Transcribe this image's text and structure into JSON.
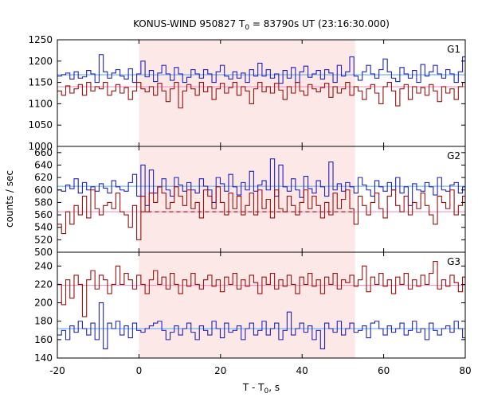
{
  "chart_data": {
    "type": "line",
    "title_main": "KONUS-WIND 950827 T",
    "title_sub": "0",
    "title_rest": " = 83790s UT (23:16:30.000)",
    "xlabel_main": "T - T",
    "xlabel_sub": "0",
    "xlabel_rest": ", s",
    "ylabel": "counts / sec",
    "xlim": [
      -20,
      80
    ],
    "x_ticks": [
      "-20",
      "0",
      "20",
      "40",
      "60",
      "80"
    ],
    "highlight_interval": [
      0,
      53
    ],
    "colors": {
      "blue": "#2222bb",
      "red": "#991111",
      "blue_bg": "#55aaee",
      "red_bg": "#ee88bb",
      "shade": "#fde8e8"
    },
    "x_start": -20,
    "bin_width": 1.024,
    "panels": [
      {
        "label": "G1",
        "ylim": [
          1000,
          1250
        ],
        "y_ticks": [
          "1000",
          "1050",
          "1100",
          "1150",
          "1200",
          "1250"
        ],
        "series": [
          {
            "color_key": "blue",
            "background_level": 1168,
            "values": [
              1165,
              1168,
              1172,
              1158,
              1175,
              1160,
              1163,
              1178,
              1170,
              1150,
              1215,
              1175,
              1160,
              1172,
              1180,
              1165,
              1158,
              1182,
              1150,
              1170,
              1200,
              1163,
              1178,
              1152,
              1172,
              1190,
              1170,
              1155,
              1185,
              1170,
              1150,
              1162,
              1180,
              1170,
              1160,
              1180,
              1170,
              1150,
              1175,
              1190,
              1165,
              1158,
              1175,
              1160,
              1172,
              1150,
              1180,
              1165,
              1195,
              1165,
              1180,
              1160,
              1170,
              1148,
              1178,
              1160,
              1185,
              1150,
              1175,
              1188,
              1162,
              1170,
              1178,
              1158,
              1180,
              1172,
              1150,
              1190,
              1165,
              1175,
              1210,
              1165,
              1155,
              1175,
              1190,
              1170,
              1160,
              1180,
              1205,
              1175,
              1160,
              1152,
              1185,
              1170,
              1160,
              1178,
              1150,
              1192,
              1165,
              1175,
              1190,
              1170,
              1160,
              1180,
              1170,
              1150,
              1175,
              1210,
              1165,
              1140
            ]
          },
          {
            "color_key": "red",
            "background_level": 1140,
            "values": [
              1130,
              1120,
              1142,
              1125,
              1135,
              1145,
              1120,
              1150,
              1130,
              1140,
              1135,
              1150,
              1120,
              1130,
              1145,
              1125,
              1138,
              1110,
              1130,
              1150,
              1135,
              1128,
              1140,
              1120,
              1148,
              1130,
              1105,
              1135,
              1150,
              1090,
              1130,
              1145,
              1135,
              1120,
              1150,
              1128,
              1140,
              1110,
              1135,
              1148,
              1125,
              1138,
              1150,
              1120,
              1140,
              1130,
              1100,
              1135,
              1150,
              1128,
              1140,
              1125,
              1148,
              1132,
              1110,
              1140,
              1125,
              1150,
              1130,
              1120,
              1145,
              1135,
              1128,
              1138,
              1148,
              1115,
              1140,
              1125,
              1135,
              1150,
              1120,
              1140,
              1130,
              1110,
              1135,
              1145,
              1125,
              1100,
              1140,
              1150,
              1130,
              1095,
              1135,
              1145,
              1110,
              1140,
              1125,
              1138,
              1120,
              1145,
              1130,
              1105,
              1140,
              1125,
              1135,
              1110,
              1140,
              1150,
              1120,
              1130
            ]
          }
        ]
      },
      {
        "label": "G2",
        "ylim": [
          500,
          670
        ],
        "y_ticks": [
          "500",
          "520",
          "540",
          "560",
          "580",
          "600",
          "620",
          "640",
          "660"
        ],
        "series": [
          {
            "color_key": "blue",
            "background_level": 606,
            "values": [
              600,
              598,
              608,
              602,
              618,
              595,
              612,
              600,
              605,
              598,
              610,
              603,
              595,
              615,
              605,
              600,
              598,
              612,
              625,
              590,
              640,
              575,
              632,
              595,
              605,
              618,
              600,
              590,
              620,
              608,
              598,
              612,
              600,
              595,
              618,
              606,
              600,
              580,
              620,
              610,
              598,
              625,
              605,
              592,
              612,
              600,
              630,
              598,
              608,
              615,
              600,
              650,
              590,
              640,
              605,
              598,
              618,
              600,
              588,
              622,
              602,
              595,
              615,
              605,
              590,
              645,
              600,
              610,
              598,
              612,
              605,
              595,
              620,
              608,
              600,
              590,
              615,
              605,
              598,
              612,
              600,
              620,
              595,
              605,
              575,
              610,
              600,
              598,
              612,
              605,
              592,
              620,
              600,
              598,
              608,
              612,
              595,
              605,
              600,
              610
            ]
          },
          {
            "color_key": "red",
            "background_level": 565,
            "values": [
              545,
              530,
              565,
              545,
              575,
              560,
              590,
              555,
              600,
              570,
              560,
              575,
              580,
              570,
              595,
              565,
              560,
              540,
              575,
              520,
              590,
              565,
              595,
              580,
              605,
              595,
              570,
              580,
              605,
              590,
              575,
              600,
              570,
              580,
              555,
              600,
              590,
              570,
              605,
              580,
              560,
              595,
              570,
              590,
              560,
              575,
              595,
              560,
              600,
              570,
              585,
              555,
              600,
              570,
              565,
              590,
              575,
              560,
              580,
              600,
              570,
              590,
              575,
              555,
              580,
              560,
              595,
              570,
              585,
              600,
              570,
              545,
              590,
              575,
              560,
              580,
              595,
              570,
              555,
              590,
              600,
              575,
              565,
              590,
              560,
              580,
              570,
              595,
              575,
              560,
              545,
              590,
              580,
              570,
              600,
              560,
              575,
              590,
              570,
              545
            ]
          }
        ]
      },
      {
        "label": "G3",
        "ylim": [
          140,
          255
        ],
        "y_ticks": [
          "140",
          "160",
          "180",
          "200",
          "220",
          "240"
        ],
        "series": [
          {
            "color_key": "blue",
            "background_level": 172,
            "values": [
              165,
              170,
              160,
              175,
              168,
              180,
              172,
              165,
              178,
              160,
              200,
              150,
              178,
              172,
              180,
              165,
              175,
              162,
              178,
              170,
              168,
              172,
              175,
              178,
              180,
              170,
              160,
              168,
              175,
              165,
              172,
              178,
              168,
              160,
              175,
              170,
              165,
              180,
              172,
              162,
              178,
              168,
              170,
              175,
              160,
              172,
              178,
              165,
              170,
              180,
              165,
              172,
              178,
              160,
              170,
              190,
              165,
              172,
              178,
              168,
              175,
              160,
              170,
              150,
              178,
              172,
              168,
              180,
              165,
              172,
              178,
              168,
              170,
              175,
              162,
              178,
              180,
              172,
              165,
              175,
              168,
              172,
              178,
              165,
              170,
              180,
              168,
              172,
              160,
              178,
              170,
              165,
              172,
              175,
              168,
              180,
              172,
              162,
              165,
              170
            ]
          },
          {
            "color_key": "red",
            "background_level": 219,
            "values": [
              220,
              198,
              225,
              205,
              230,
              220,
              185,
              225,
              235,
              215,
              230,
              225,
              210,
              220,
              240,
              220,
              232,
              225,
              215,
              230,
              220,
              210,
              225,
              235,
              220,
              228,
              215,
              232,
              220,
              210,
              225,
              218,
              232,
              220,
              215,
              225,
              230,
              218,
              225,
              212,
              228,
              220,
              232,
              215,
              225,
              218,
              230,
              222,
              210,
              228,
              220,
              232,
              215,
              225,
              218,
              230,
              220,
              210,
              228,
              220,
              232,
              218,
              225,
              210,
              228,
              220,
              232,
              215,
              225,
              222,
              230,
              218,
              225,
              240,
              212,
              228,
              220,
              232,
              218,
              225,
              210,
              228,
              220,
              232,
              215,
              225,
              218,
              230,
              220,
              232,
              245,
              215,
              225,
              218,
              230,
              222,
              212,
              228,
              220,
              235
            ]
          }
        ]
      }
    ]
  }
}
